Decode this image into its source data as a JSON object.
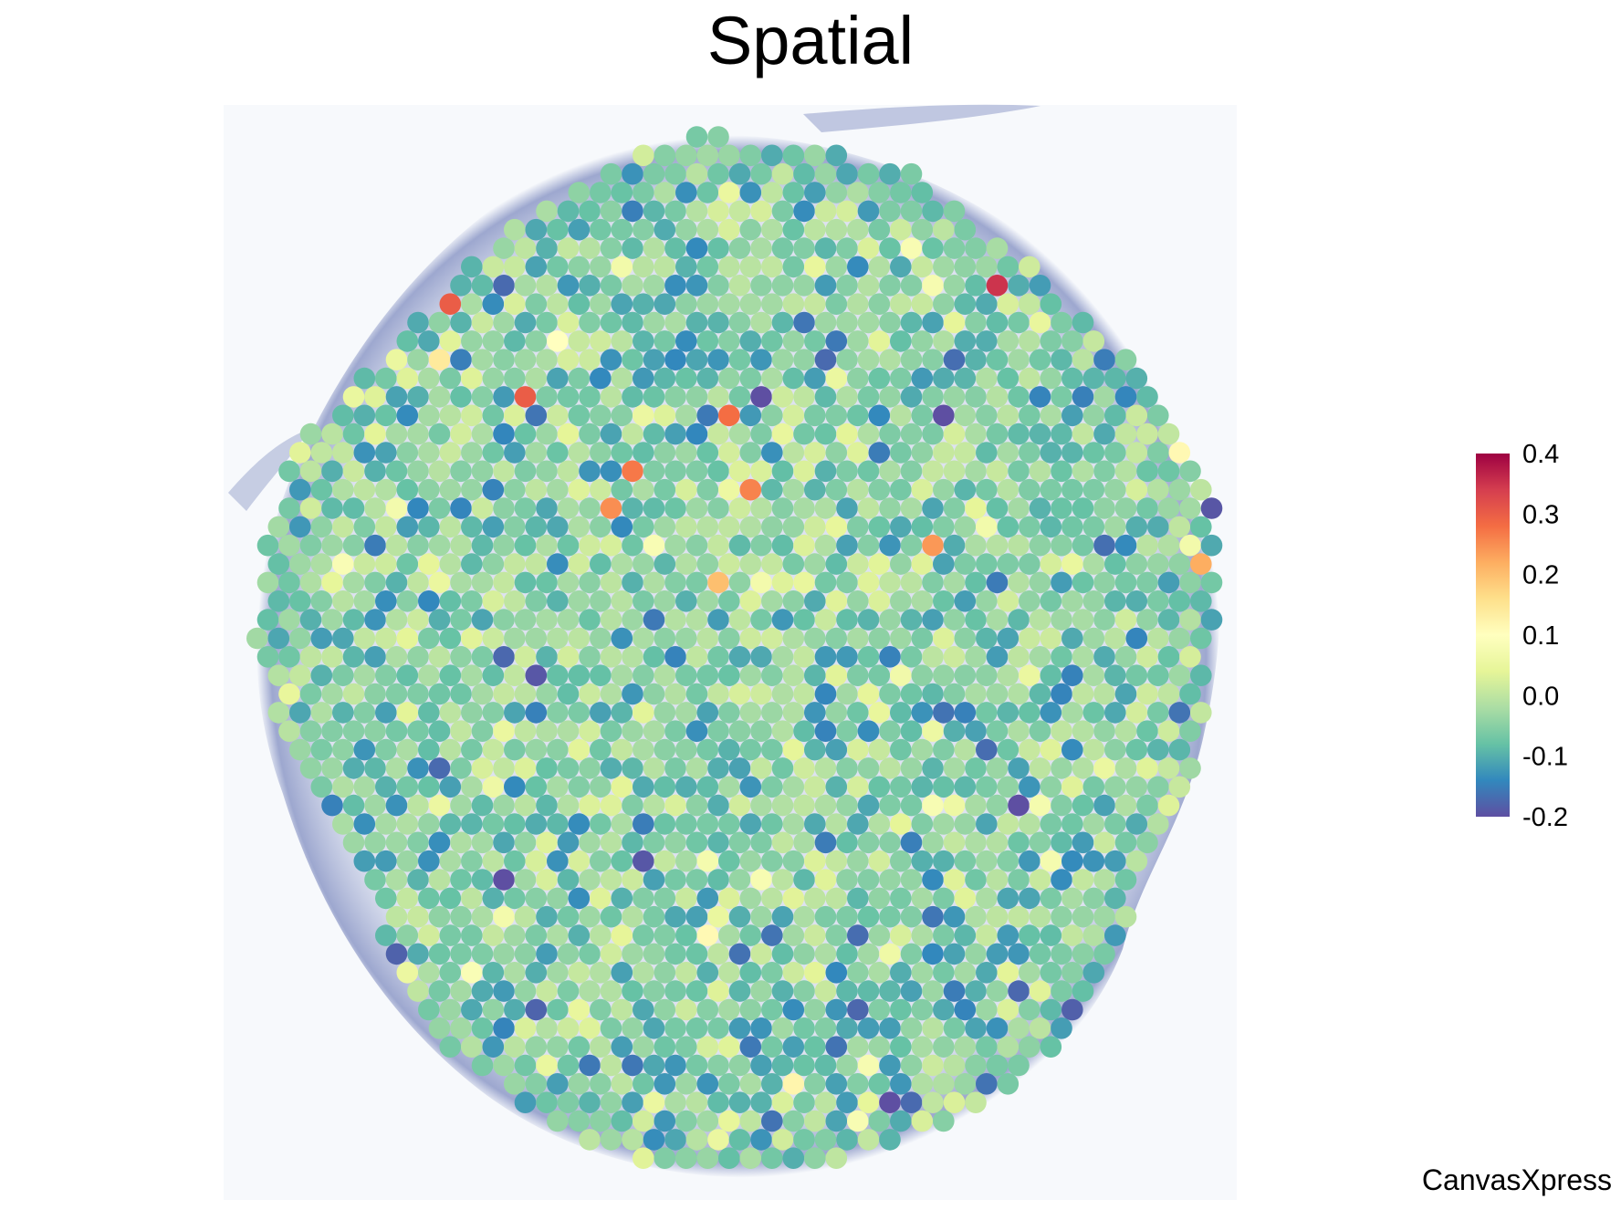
{
  "chart_data": {
    "type": "heatmap",
    "subtype": "spatial-spot-map",
    "title": "Spatial",
    "value_range": [
      -0.2,
      0.4
    ],
    "colorbar": {
      "ticks": [
        "0.4",
        "0.3",
        "0.2",
        "0.1",
        "0.0",
        "-0.1",
        "-0.2"
      ],
      "tick_values": [
        0.4,
        0.3,
        0.2,
        0.1,
        0.0,
        -0.1,
        -0.2
      ],
      "palette": [
        "#5e4fa2",
        "#3288bd",
        "#66c2a5",
        "#abdda4",
        "#e6f598",
        "#ffffbf",
        "#fee08b",
        "#fdae61",
        "#f46d43",
        "#d53e4f",
        "#9e0142"
      ],
      "placement": "right"
    },
    "background": "tissue section image",
    "notes": "Each spot is one measured location; individual spot values are estimated from color (about -0.15 to 0.35).",
    "highlight_values": [
      0.35,
      0.3,
      0.3,
      0.28,
      0.27,
      0.26,
      0.25,
      0.24,
      0.22,
      0.2
    ],
    "typical_value": -0.05
  },
  "branding": {
    "watermark": "CanvasXpress"
  }
}
